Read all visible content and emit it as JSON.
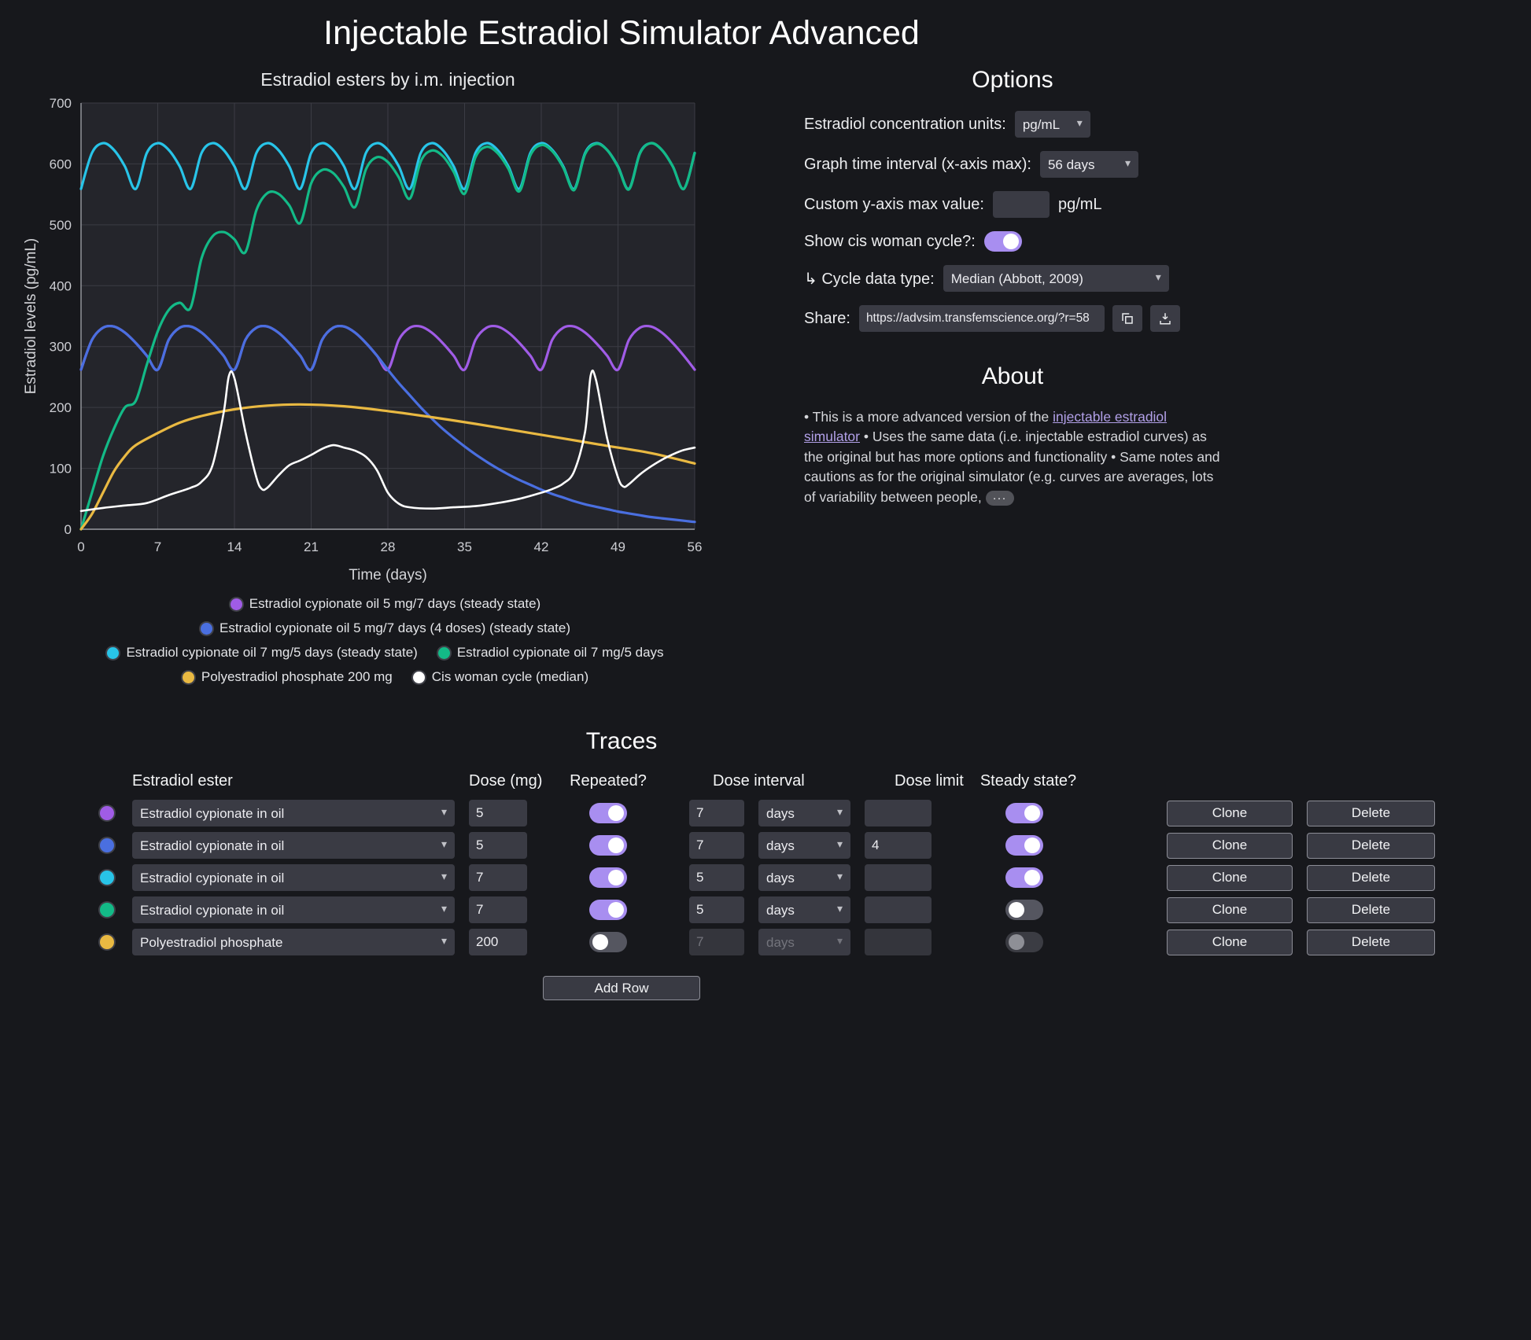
{
  "page": {
    "title": "Injectable Estradiol Simulator Advanced"
  },
  "theme": {
    "accent": "#a88ef0",
    "link": "#b2a0e8",
    "background": "#17181c"
  },
  "options": {
    "heading": "Options",
    "units_label": "Estradiol concentration units:",
    "units_value": "pg/mL",
    "interval_label": "Graph time interval (x-axis max):",
    "interval_value": "56 days",
    "ymax_label": "Custom y-axis max value:",
    "ymax_value": "",
    "ymax_unit": "pg/mL",
    "cycle_toggle_label": "Show cis woman cycle?:",
    "cycle_toggle_on": true,
    "cycle_type_label": "↳ Cycle data type:",
    "cycle_type_value": "Median (Abbott, 2009)",
    "share_label": "Share:",
    "share_value": "https://advsim.transfemscience.org/?r=58"
  },
  "about": {
    "heading": "About",
    "seg1": "• This is a more advanced version of the ",
    "link_text": "injectable estradiol simulator",
    "seg2": " • Uses the same data (i.e. injectable estradiol curves) as the original but has more options and functionality • Same notes and cautions as for the original simulator (e.g. curves are averages, lots of variability between people, ",
    "more_label": "···"
  },
  "traces": {
    "heading": "Traces",
    "columns": [
      "Estradiol ester",
      "Dose (mg)",
      "Repeated?",
      "Dose interval",
      "Dose limit",
      "Steady state?"
    ],
    "clone_label": "Clone",
    "delete_label": "Delete",
    "add_row_label": "Add Row",
    "rows": [
      {
        "color": "#a05ce6",
        "ester": "Estradiol cypionate in oil",
        "dose": "5",
        "repeated": true,
        "interval": "7",
        "interval_unit": "days",
        "dose_limit": "",
        "steady_state": true
      },
      {
        "color": "#4a6fe0",
        "ester": "Estradiol cypionate in oil",
        "dose": "5",
        "repeated": true,
        "interval": "7",
        "interval_unit": "days",
        "dose_limit": "4",
        "steady_state": true
      },
      {
        "color": "#28c4e8",
        "ester": "Estradiol cypionate in oil",
        "dose": "7",
        "repeated": true,
        "interval": "5",
        "interval_unit": "days",
        "dose_limit": "",
        "steady_state": true
      },
      {
        "color": "#13ba87",
        "ester": "Estradiol cypionate in oil",
        "dose": "7",
        "repeated": true,
        "interval": "5",
        "interval_unit": "days",
        "dose_limit": "",
        "steady_state": false
      },
      {
        "color": "#e9b942",
        "ester": "Polyestradiol phosphate",
        "dose": "200",
        "repeated": false,
        "interval": "7",
        "interval_unit": "days",
        "dose_limit": "",
        "steady_state": false,
        "disabled": {
          "interval": true,
          "limit": true,
          "steady": true
        }
      }
    ]
  },
  "chart_data": {
    "type": "line",
    "title": "Estradiol esters by i.m. injection",
    "xlabel": "Time (days)",
    "ylabel": "Estradiol levels (pg/mL)",
    "xlim": [
      0,
      56
    ],
    "ylim": [
      0,
      700
    ],
    "xticks": [
      0,
      7,
      14,
      21,
      28,
      35,
      42,
      49,
      56
    ],
    "yticks": [
      0,
      100,
      200,
      300,
      400,
      500,
      600,
      700
    ],
    "grid": true,
    "legend_position": "bottom",
    "legend_rows": [
      [
        0
      ],
      [
        1
      ],
      [
        2,
        3
      ],
      [
        4,
        5
      ]
    ],
    "x_default": [
      0,
      1,
      2,
      3,
      4,
      5,
      6,
      7,
      8,
      9,
      10,
      11,
      12,
      13,
      14,
      15,
      16,
      17,
      18,
      19,
      20,
      21,
      22,
      23,
      24,
      25,
      26,
      27,
      28,
      29,
      30,
      31,
      32,
      33,
      34,
      35,
      36,
      37,
      38,
      39,
      40,
      41,
      42,
      43,
      44,
      45,
      46,
      47,
      48,
      49,
      50,
      51,
      52,
      53,
      54,
      55,
      56
    ],
    "series": [
      {
        "name": "Estradiol cypionate oil 5 mg/7 days (steady state)",
        "color": "#a05ce6",
        "y": [
          262,
          311,
          331,
          333,
          323,
          306,
          285,
          262,
          311,
          331,
          333,
          323,
          306,
          285,
          262,
          311,
          331,
          333,
          323,
          306,
          285,
          262,
          311,
          331,
          333,
          323,
          306,
          285,
          262,
          311,
          331,
          333,
          323,
          306,
          285,
          262,
          311,
          331,
          333,
          323,
          306,
          285,
          262,
          311,
          331,
          333,
          323,
          306,
          285,
          262,
          311,
          331,
          333,
          323,
          306,
          285,
          262
        ]
      },
      {
        "name": "Estradiol cypionate oil 5 mg/7 days (4 doses) (steady state)",
        "color": "#4a6fe0",
        "y": [
          262,
          311,
          331,
          333,
          323,
          306,
          285,
          262,
          311,
          331,
          333,
          323,
          306,
          285,
          262,
          311,
          331,
          333,
          323,
          306,
          285,
          262,
          311,
          331,
          333,
          323,
          306,
          285,
          262,
          240,
          220,
          200,
          182,
          165,
          150,
          136,
          123,
          111,
          100,
          90,
          81,
          73,
          65,
          58,
          52,
          46,
          41,
          37,
          33,
          29,
          26,
          23,
          20,
          18,
          16,
          14,
          12
        ]
      },
      {
        "name": "Estradiol cypionate oil 7 mg/5 days (steady state)",
        "color": "#28c4e8",
        "y": [
          559,
          618,
          634,
          623,
          596,
          559,
          618,
          634,
          623,
          596,
          559,
          618,
          634,
          623,
          596,
          559,
          618,
          634,
          623,
          596,
          559,
          618,
          634,
          623,
          596,
          559,
          618,
          634,
          623,
          596,
          559,
          618,
          634,
          623,
          596,
          559,
          618,
          634,
          623,
          596,
          559,
          618,
          634,
          623,
          596,
          559,
          618,
          634,
          623,
          596,
          559,
          618,
          634,
          623,
          596,
          559,
          618
        ]
      },
      {
        "name": "Estradiol cypionate oil 7 mg/5 days",
        "color": "#13ba87",
        "y": [
          0,
          60,
          120,
          165,
          200,
          211,
          270,
          325,
          360,
          372,
          364,
          445,
          481,
          488,
          476,
          455,
          524,
          552,
          551,
          532,
          503,
          568,
          590,
          585,
          562,
          529,
          591,
          611,
          603,
          578,
          543,
          604,
          622,
          613,
          587,
          551,
          611,
          628,
          618,
          592,
          555,
          614,
          631,
          621,
          594,
          557,
          616,
          633,
          623,
          595,
          558,
          617,
          634,
          623,
          596,
          559,
          618
        ]
      },
      {
        "name": "Polyestradiol phosphate 200 mg",
        "color": "#e9b942",
        "x": [
          0,
          1,
          2,
          3,
          4,
          5,
          7,
          9,
          11,
          14,
          17,
          20,
          24,
          28,
          32,
          36,
          40,
          44,
          48,
          52,
          56
        ],
        "y": [
          0,
          25,
          60,
          95,
          120,
          138,
          158,
          175,
          186,
          197,
          203,
          205,
          202,
          194,
          184,
          173,
          161,
          149,
          137,
          125,
          108
        ]
      },
      {
        "name": "Cis woman cycle (median)",
        "color": "#ffffff",
        "x": [
          0,
          2,
          4,
          6,
          8,
          10,
          11,
          12,
          13,
          13.5,
          14,
          15,
          16,
          16.5,
          17,
          18,
          19,
          20,
          21,
          22,
          23,
          24,
          25,
          26,
          27,
          28,
          29,
          30,
          32,
          34,
          36,
          38,
          40,
          42,
          43,
          44,
          45,
          46,
          46.5,
          47,
          48,
          49,
          49.5,
          50,
          51,
          52,
          53,
          54,
          55,
          56
        ],
        "y": [
          30,
          35,
          39,
          43,
          56,
          68,
          78,
          105,
          190,
          252,
          248,
          160,
          85,
          66,
          68,
          88,
          105,
          113,
          122,
          132,
          138,
          134,
          129,
          119,
          97,
          60,
          42,
          36,
          34,
          36,
          38,
          43,
          50,
          60,
          66,
          75,
          95,
          160,
          252,
          245,
          150,
          85,
          70,
          74,
          90,
          103,
          114,
          123,
          130,
          134
        ]
      }
    ]
  }
}
